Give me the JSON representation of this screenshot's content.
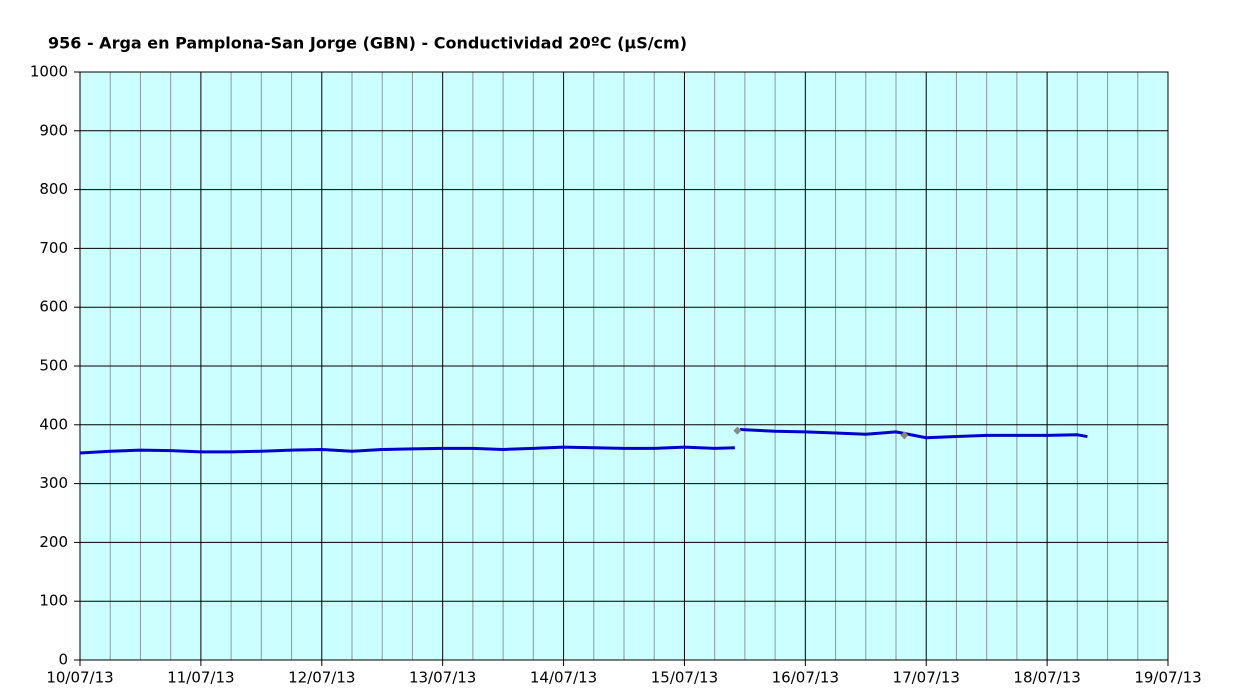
{
  "chart_data": {
    "type": "line",
    "title": "956 - Arga en Pamplona-San Jorge (GBN) - Conductividad 20ºC (µS/cm)",
    "x": [
      "2013-07-10T00:00",
      "2013-07-10T06:00",
      "2013-07-10T12:00",
      "2013-07-10T18:00",
      "2013-07-11T00:00",
      "2013-07-11T06:00",
      "2013-07-11T12:00",
      "2013-07-11T18:00",
      "2013-07-12T00:00",
      "2013-07-12T06:00",
      "2013-07-12T12:00",
      "2013-07-12T18:00",
      "2013-07-13T00:00",
      "2013-07-13T06:00",
      "2013-07-13T12:00",
      "2013-07-13T18:00",
      "2013-07-14T00:00",
      "2013-07-14T06:00",
      "2013-07-14T12:00",
      "2013-07-14T18:00",
      "2013-07-15T00:00",
      "2013-07-15T06:00",
      "2013-07-15T10:00",
      "2013-07-15T10:15",
      "2013-07-15T11:00",
      "2013-07-15T18:00",
      "2013-07-16T00:00",
      "2013-07-16T06:00",
      "2013-07-16T12:00",
      "2013-07-16T18:00",
      "2013-07-17T00:00",
      "2013-07-17T06:00",
      "2013-07-17T12:00",
      "2013-07-17T18:00",
      "2013-07-18T00:00",
      "2013-07-18T06:00",
      "2013-07-18T08:00"
    ],
    "series": [
      {
        "color": "#0000cc",
        "values": [
          352,
          355,
          357,
          356,
          354,
          354,
          355,
          357,
          358,
          355,
          358,
          359,
          360,
          360,
          358,
          360,
          362,
          361,
          360,
          360,
          362,
          360,
          361,
          null,
          392,
          389,
          388,
          386,
          384,
          388,
          378,
          380,
          382,
          382,
          382,
          383,
          380
        ]
      }
    ],
    "markers": {
      "color": "#888888",
      "x": [
        "2013-07-15T10:30",
        "2013-07-16T19:40"
      ],
      "values": [
        390,
        382
      ]
    },
    "xlim": [
      "2013-07-10T00:00",
      "2013-07-19T00:00"
    ],
    "xticks": [
      {
        "value": "2013-07-10T00:00",
        "label": "10/07/13"
      },
      {
        "value": "2013-07-11T00:00",
        "label": "11/07/13"
      },
      {
        "value": "2013-07-12T00:00",
        "label": "12/07/13"
      },
      {
        "value": "2013-07-13T00:00",
        "label": "13/07/13"
      },
      {
        "value": "2013-07-14T00:00",
        "label": "14/07/13"
      },
      {
        "value": "2013-07-15T00:00",
        "label": "15/07/13"
      },
      {
        "value": "2013-07-16T00:00",
        "label": "16/07/13"
      },
      {
        "value": "2013-07-17T00:00",
        "label": "17/07/13"
      },
      {
        "value": "2013-07-18T00:00",
        "label": "18/07/13"
      },
      {
        "value": "2013-07-19T00:00",
        "label": "19/07/13"
      }
    ],
    "ylim": [
      0,
      1000
    ],
    "yticks": [
      0,
      100,
      200,
      300,
      400,
      500,
      600,
      700,
      800,
      900,
      1000
    ],
    "grid": true,
    "plot_background": "#ccffff"
  }
}
